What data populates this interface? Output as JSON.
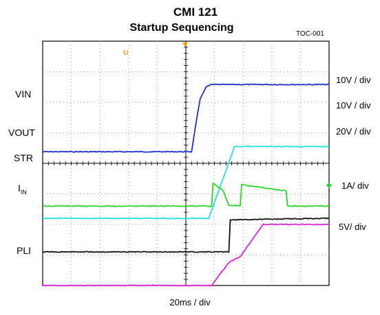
{
  "title": "CMI  121",
  "subtitle": "Startup Sequencing",
  "figure_id": "TOC-001",
  "time_scale": "20ms / div",
  "channels": [
    {
      "label": "VIN",
      "scale": "10V / div",
      "color": "#1f2fd0"
    },
    {
      "label": "VOUT",
      "scale": "10V / div",
      "color": "#22e0e8"
    },
    {
      "label": "STR",
      "scale": "20V / div",
      "color": "#e020e0"
    },
    {
      "label": "I",
      "label_sub": "IN",
      "scale": "1A/ div",
      "color": "#27d927"
    },
    {
      "label": "PLI",
      "scale": "5V/ div",
      "color": "#111111"
    }
  ],
  "chart_data": {
    "type": "line",
    "title": "CMI  121",
    "subtitle": "Startup Sequencing",
    "xlabel": "20ms / div",
    "x_unit": "division",
    "xlim": [
      0,
      10
    ],
    "grid": true,
    "series": [
      {
        "name": "VIN",
        "x": [
          0,
          5.2,
          5.35,
          5.5,
          5.7,
          5.9,
          10
        ],
        "y": [
          4.38,
          4.38,
          5.3,
          6.1,
          6.5,
          6.58,
          6.58
        ]
      },
      {
        "name": "VOUT",
        "x": [
          0,
          5.8,
          6.7,
          10
        ],
        "y": [
          2.2,
          2.2,
          4.55,
          4.55
        ]
      },
      {
        "name": "STR",
        "x": [
          0,
          5.9,
          6.5,
          6.9,
          7.7,
          10
        ],
        "y": [
          0.0,
          0.0,
          0.75,
          0.95,
          2.0,
          2.0
        ]
      },
      {
        "name": "IN",
        "x": [
          0,
          5.9,
          5.95,
          6.3,
          6.5,
          6.9,
          6.95,
          8.5,
          8.55,
          9.2,
          9.25,
          9.85,
          10
        ],
        "y": [
          2.6,
          2.6,
          3.35,
          3.1,
          2.62,
          2.62,
          3.3,
          3.1,
          2.6,
          2.6,
          2.6,
          2.6,
          2.6
        ]
      },
      {
        "name": "PLI",
        "x": [
          0,
          6.5,
          6.55,
          9.8,
          10
        ],
        "y": [
          1.1,
          1.1,
          2.15,
          2.2,
          2.2
        ]
      }
    ]
  }
}
